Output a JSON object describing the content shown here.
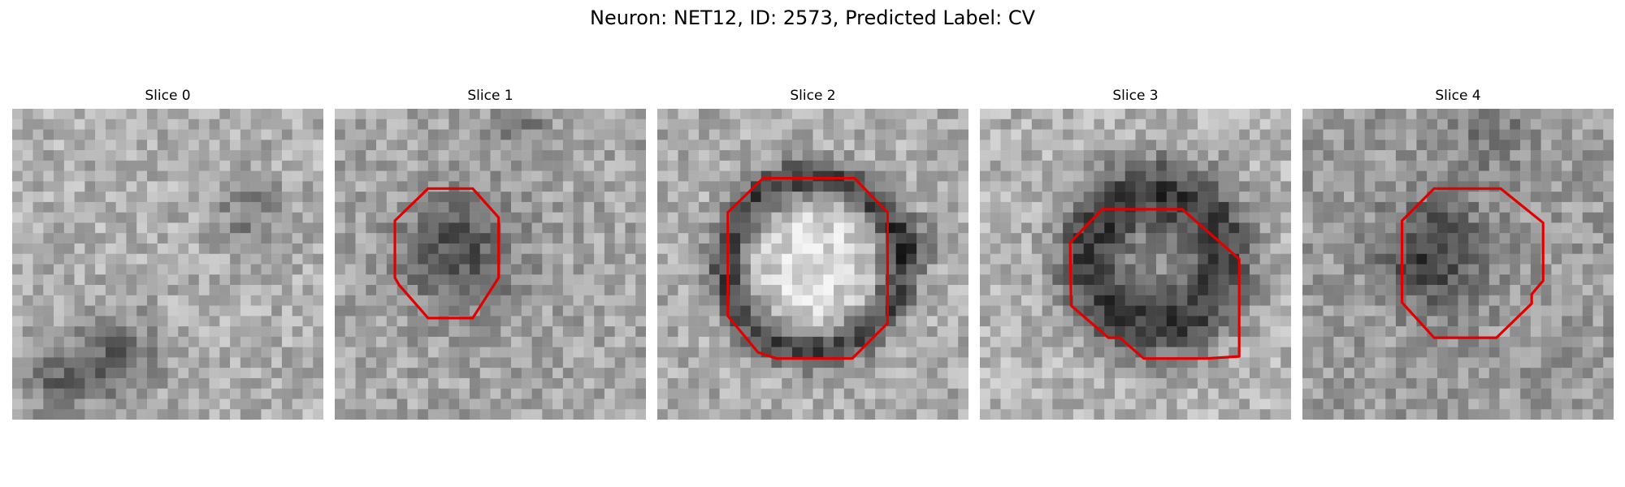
{
  "figure": {
    "title": "Neuron: NET12, ID: 2573, Predicted Label: CV"
  },
  "colors": {
    "contour": "#e00000",
    "background": "#ffffff"
  },
  "slices": [
    {
      "label": "Slice 0",
      "has_contour": false,
      "dark_blob": null
    },
    {
      "label": "Slice 1",
      "has_contour": true,
      "dark_blob": "center"
    },
    {
      "label": "Slice 2",
      "has_contour": true,
      "dark_blob": "ring"
    },
    {
      "label": "Slice 3",
      "has_contour": true,
      "dark_blob": "ring-dark"
    },
    {
      "label": "Slice 4",
      "has_contour": true,
      "dark_blob": "center-left"
    }
  ]
}
